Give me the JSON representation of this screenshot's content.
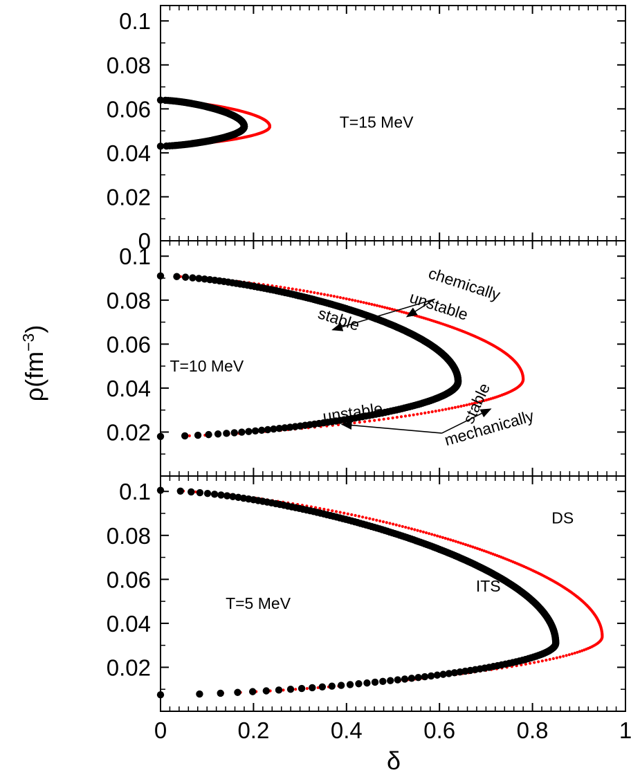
{
  "chart_data": {
    "type": "scatter",
    "shared_x_axis": {
      "label": "δ",
      "range": [
        0,
        1
      ],
      "ticks": [
        "0",
        "0.2",
        "0.4",
        "0.6",
        "0.8",
        "1"
      ]
    },
    "y_axis_label": {
      "prefix": "ρ(fm",
      "superscript": "−3",
      "suffix": ")"
    },
    "series_styles": {
      "ITS": {
        "color": "#000000",
        "style": "thick dotted boundary"
      },
      "DS": {
        "color": "#ff0000",
        "style": "thin dotted boundary"
      }
    },
    "panels": [
      {
        "id": "T15",
        "temperature_label": "T=15 MeV",
        "ylim": [
          0,
          0.107
        ],
        "y_ticks": [
          "0",
          "0.02",
          "0.04",
          "0.06",
          "0.08",
          "0.1"
        ],
        "ITS": {
          "rho_low": 0.043,
          "rho_high": 0.064,
          "delta_max": 0.18,
          "rho_at_max": 0.052
        },
        "DS": {
          "rho_low": 0.043,
          "rho_high": 0.064,
          "delta_max": 0.235,
          "rho_at_max": 0.052
        },
        "annotations": []
      },
      {
        "id": "T10",
        "temperature_label": "T=10 MeV",
        "ylim": [
          0,
          0.107
        ],
        "y_ticks": [
          "0.02",
          "0.04",
          "0.06",
          "0.08",
          "0.1"
        ],
        "ITS": {
          "rho_low": 0.018,
          "rho_high": 0.091,
          "delta_max": 0.64,
          "rho_at_max": 0.043
        },
        "DS": {
          "rho_low": 0.018,
          "rho_high": 0.091,
          "delta_max": 0.78,
          "rho_at_max": 0.044
        },
        "annotations": [
          {
            "text": "chemically",
            "x": 0.65,
            "y": 0.085,
            "angle": 18
          },
          {
            "text": "unstable",
            "x": 0.595,
            "y": 0.075,
            "angle": 18
          },
          {
            "text": "stable",
            "x": 0.38,
            "y": 0.069,
            "angle": 18
          },
          {
            "text": "unstable",
            "x": 0.415,
            "y": 0.0265,
            "angle": -8
          },
          {
            "text": "stable",
            "x": 0.69,
            "y": 0.032,
            "angle": -65
          },
          {
            "text": "mechanically",
            "x": 0.71,
            "y": 0.0195,
            "angle": -16
          }
        ]
      },
      {
        "id": "T5",
        "temperature_label": "T=5 MeV",
        "ylim": [
          0,
          0.107
        ],
        "y_ticks": [
          "0.02",
          "0.04",
          "0.06",
          "0.08",
          "0.1"
        ],
        "ITS": {
          "rho_low": 0.0075,
          "rho_high": 0.1005,
          "delta_max": 0.85,
          "rho_at_max": 0.031
        },
        "DS": {
          "rho_low": 0.0075,
          "rho_high": 0.1005,
          "delta_max": 0.95,
          "rho_at_max": 0.034
        },
        "annotations": [
          {
            "text": "DS",
            "x": 0.865,
            "y": 0.0855,
            "angle": 0,
            "color": "#ff0000"
          },
          {
            "text": "ITS",
            "x": 0.705,
            "y": 0.0545,
            "angle": 0
          }
        ]
      }
    ]
  }
}
